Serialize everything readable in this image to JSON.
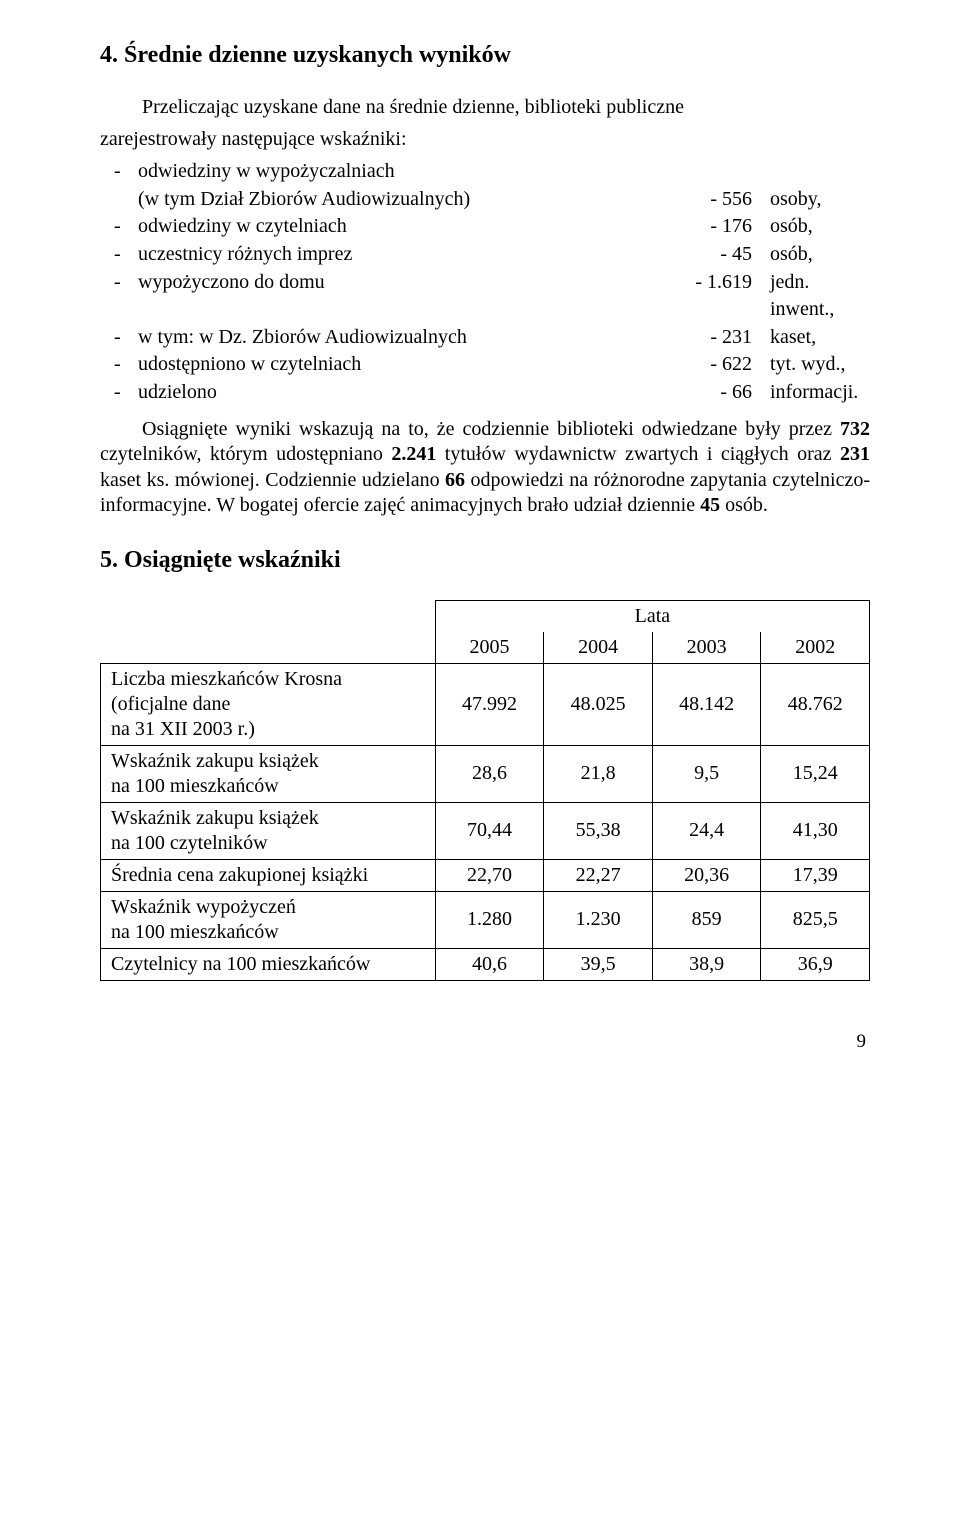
{
  "section4": {
    "heading": "4.   Średnie dzienne uzyskanych wyników",
    "intro_lines": [
      "Przeliczając uzyskane dane na średnie dzienne, biblioteki publiczne",
      "zarejestrowały następujące wskaźniki:"
    ],
    "list": [
      {
        "label": "odwiedziny w wypożyczalniach",
        "num": "",
        "unit": ""
      },
      {
        "label": "(w tym Dział Zbiorów Audiowizualnych)",
        "num": "- 556",
        "unit": "osoby,",
        "indent": true
      },
      {
        "label": "odwiedziny w czytelniach",
        "num": "- 176",
        "unit": "osób,"
      },
      {
        "label": "uczestnicy różnych imprez",
        "num": "- 45",
        "unit": "osób,"
      },
      {
        "label": "wypożyczono do domu",
        "num": "- 1.619",
        "unit": "jedn. inwent.,"
      },
      {
        "label": "w tym: w Dz. Zbiorów Audiowizualnych",
        "num": "- 231",
        "unit": "kaset,"
      },
      {
        "label": "udostępniono w czytelniach",
        "num": "- 622",
        "unit": "tyt. wyd.,"
      },
      {
        "label": "udzielono",
        "num": "- 66",
        "unit": "informacji."
      }
    ],
    "summary_prefix": "Osiągnięte wyniki wskazują na to, że codziennie biblioteki odwiedzane były przez ",
    "b1": "732",
    "t2": " czytelników, którym udostępniano ",
    "b2": "2.241",
    "t3": " tytułów wydawnictw zwartych i ciągłych oraz ",
    "b3": "231",
    "t4": " kaset ks. mówionej. Codziennie udzielano ",
    "b4": "66",
    "t5": " odpowiedzi na różnorodne zapytania czytelniczo-informacyjne. W bogatej ofercie zajęć animacyjnych brało udział dziennie ",
    "b5": "45",
    "t6": " osób."
  },
  "section5": {
    "heading": "5.   Osiągnięte wskaźniki",
    "lata": "Lata",
    "years": [
      "2005",
      "2004",
      "2003",
      "2002"
    ],
    "rows": [
      {
        "label_lines": [
          "Liczba mieszkańców Krosna",
          "(oficjalne dane",
          "na 31 XII 2003 r.)"
        ],
        "vals": [
          "47.992",
          "48.025",
          "48.142",
          "48.762"
        ]
      },
      {
        "label_lines": [
          "Wskaźnik zakupu książek",
          "na 100 mieszkańców"
        ],
        "vals": [
          "28,6",
          "21,8",
          "9,5",
          "15,24"
        ]
      },
      {
        "label_lines": [
          "Wskaźnik zakupu książek",
          "na 100 czytelników"
        ],
        "vals": [
          "70,44",
          "55,38",
          "24,4",
          "41,30"
        ]
      },
      {
        "label_lines": [
          "Średnia cena zakupionej książki"
        ],
        "vals": [
          "22,70",
          "22,27",
          "20,36",
          "17,39"
        ]
      },
      {
        "label_lines": [
          "Wskaźnik wypożyczeń",
          "na 100 mieszkańców"
        ],
        "vals": [
          "1.280",
          "1.230",
          "859",
          "825,5"
        ]
      },
      {
        "label_lines": [
          "Czytelnicy na 100 mieszkańców"
        ],
        "vals": [
          "40,6",
          "39,5",
          "38,9",
          "36,9"
        ]
      }
    ]
  },
  "page_number": "9",
  "table_style": {
    "label_col_width": 330,
    "val_col_width": 107,
    "border_color": "#000000"
  }
}
